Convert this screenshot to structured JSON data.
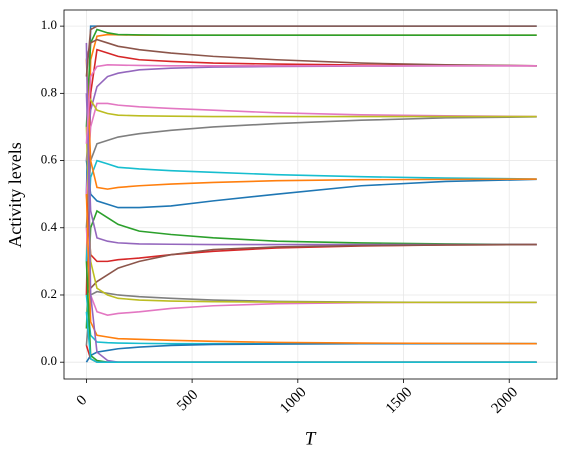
{
  "chart_data": {
    "type": "line",
    "x_label": "T",
    "y_label": "Activity levels",
    "x": [
      0,
      20,
      50,
      100,
      150,
      250,
      400,
      600,
      900,
      1300,
      1700,
      2130
    ],
    "xlim": [
      -106,
      2226
    ],
    "xticks": [
      0,
      500,
      1000,
      1500,
      2000
    ],
    "ylim": [
      -0.05,
      1.048
    ],
    "yticks": [
      {
        "value": 0,
        "label": "0.0"
      },
      0.2,
      0.4,
      0.6,
      0.8,
      {
        "value": 1,
        "label": "1.0"
      }
    ],
    "grid": true,
    "series": [
      {
        "color": "#1f77b4",
        "values": [
          0.5,
          1,
          1,
          1,
          1,
          1,
          1,
          1,
          1,
          1,
          1,
          1
        ]
      },
      {
        "color": "#ff7f0e",
        "values": [
          0.3,
          0.9,
          0.97,
          0.975,
          0.974,
          0.973,
          0.973,
          0.973,
          0.973,
          0.973,
          0.973,
          0.973
        ]
      },
      {
        "color": "#2ca02c",
        "values": [
          0.7,
          0.95,
          0.99,
          0.98,
          0.975,
          0.974,
          0.973,
          0.973,
          0.973,
          0.973,
          0.973,
          0.973
        ]
      },
      {
        "color": "#d62728",
        "values": [
          0.2,
          0.8,
          0.93,
          0.92,
          0.91,
          0.9,
          0.895,
          0.89,
          0.887,
          0.884,
          0.883,
          0.882
        ]
      },
      {
        "color": "#9467bd",
        "values": [
          0.6,
          0.75,
          0.82,
          0.85,
          0.86,
          0.87,
          0.875,
          0.878,
          0.88,
          0.881,
          0.882,
          0.882
        ]
      },
      {
        "color": "#8c564b",
        "values": [
          0.9,
          0.95,
          0.96,
          0.95,
          0.94,
          0.93,
          0.92,
          0.91,
          0.9,
          0.89,
          0.885,
          0.882
        ]
      },
      {
        "color": "#e377c2",
        "values": [
          0.5,
          0.7,
          0.77,
          0.77,
          0.765,
          0.76,
          0.755,
          0.75,
          0.742,
          0.736,
          0.733,
          0.731
        ]
      },
      {
        "color": "#7f7f7f",
        "values": [
          0.4,
          0.6,
          0.65,
          0.66,
          0.67,
          0.68,
          0.69,
          0.7,
          0.71,
          0.72,
          0.727,
          0.73
        ]
      },
      {
        "color": "#bcbd22",
        "values": [
          0.8,
          0.78,
          0.75,
          0.74,
          0.735,
          0.733,
          0.732,
          0.731,
          0.731,
          0.731,
          0.731,
          0.731
        ]
      },
      {
        "color": "#17becf",
        "values": [
          0.3,
          0.55,
          0.6,
          0.59,
          0.58,
          0.575,
          0.57,
          0.565,
          0.558,
          0.552,
          0.548,
          0.545
        ]
      },
      {
        "color": "#1f77b4",
        "values": [
          0.6,
          0.5,
          0.48,
          0.47,
          0.46,
          0.46,
          0.465,
          0.48,
          0.5,
          0.525,
          0.538,
          0.544
        ]
      },
      {
        "color": "#ff7f0e",
        "values": [
          0.9,
          0.6,
          0.52,
          0.515,
          0.52,
          0.525,
          0.53,
          0.535,
          0.54,
          0.543,
          0.544,
          0.545
        ]
      },
      {
        "color": "#2ca02c",
        "values": [
          0.1,
          0.4,
          0.45,
          0.43,
          0.41,
          0.39,
          0.38,
          0.37,
          0.36,
          0.355,
          0.352,
          0.35
        ]
      },
      {
        "color": "#d62728",
        "values": [
          0.5,
          0.32,
          0.3,
          0.3,
          0.305,
          0.31,
          0.32,
          0.33,
          0.34,
          0.346,
          0.349,
          0.35
        ]
      },
      {
        "color": "#9467bd",
        "values": [
          0.8,
          0.45,
          0.37,
          0.36,
          0.355,
          0.352,
          0.351,
          0.35,
          0.35,
          0.35,
          0.35,
          0.35
        ]
      },
      {
        "color": "#8c564b",
        "values": [
          0.2,
          0.22,
          0.24,
          0.26,
          0.28,
          0.3,
          0.32,
          0.335,
          0.343,
          0.347,
          0.349,
          0.35
        ]
      },
      {
        "color": "#e377c2",
        "values": [
          0.4,
          0.2,
          0.15,
          0.14,
          0.145,
          0.15,
          0.16,
          0.168,
          0.174,
          0.177,
          0.178,
          0.178
        ]
      },
      {
        "color": "#7f7f7f",
        "values": [
          0.05,
          0.2,
          0.21,
          0.205,
          0.2,
          0.195,
          0.19,
          0.185,
          0.181,
          0.179,
          0.178,
          0.178
        ]
      },
      {
        "color": "#bcbd22",
        "values": [
          0.7,
          0.3,
          0.22,
          0.2,
          0.19,
          0.185,
          0.182,
          0.18,
          0.179,
          0.178,
          0.178,
          0.178
        ]
      },
      {
        "color": "#17becf",
        "values": [
          0.2,
          0.08,
          0.06,
          0.058,
          0.057,
          0.056,
          0.055,
          0.055,
          0.055,
          0.055,
          0.055,
          0.055
        ]
      },
      {
        "color": "#1f77b4",
        "values": [
          0,
          0.02,
          0.03,
          0.035,
          0.04,
          0.045,
          0.05,
          0.053,
          0.054,
          0.055,
          0.055,
          0.055
        ]
      },
      {
        "color": "#ff7f0e",
        "values": [
          0.5,
          0.12,
          0.08,
          0.075,
          0.07,
          0.068,
          0.065,
          0.062,
          0.059,
          0.057,
          0.056,
          0.055
        ]
      },
      {
        "color": "#2ca02c",
        "values": [
          0.3,
          0.02,
          0.005,
          0,
          0,
          0,
          0,
          0,
          0,
          0,
          0,
          0
        ]
      },
      {
        "color": "#d62728",
        "values": [
          0.05,
          0.01,
          0,
          0,
          0,
          0,
          0,
          0,
          0,
          0,
          0,
          0
        ]
      },
      {
        "color": "#9467bd",
        "values": [
          0.95,
          0.2,
          0.03,
          0.005,
          0,
          0,
          0,
          0,
          0,
          0,
          0,
          0
        ]
      },
      {
        "color": "#8c564b",
        "values": [
          0.85,
          0.99,
          1,
          1,
          1,
          1,
          1,
          1,
          1,
          1,
          1,
          1
        ]
      },
      {
        "color": "#e377c2",
        "values": [
          0.65,
          0.85,
          0.88,
          0.885,
          0.884,
          0.883,
          0.882,
          0.882,
          0.882,
          0.882,
          0.882,
          0.882
        ]
      },
      {
        "color": "#17becf",
        "values": [
          0.15,
          0.01,
          0,
          0,
          0,
          0,
          0,
          0,
          0,
          0,
          0,
          0
        ]
      }
    ]
  }
}
